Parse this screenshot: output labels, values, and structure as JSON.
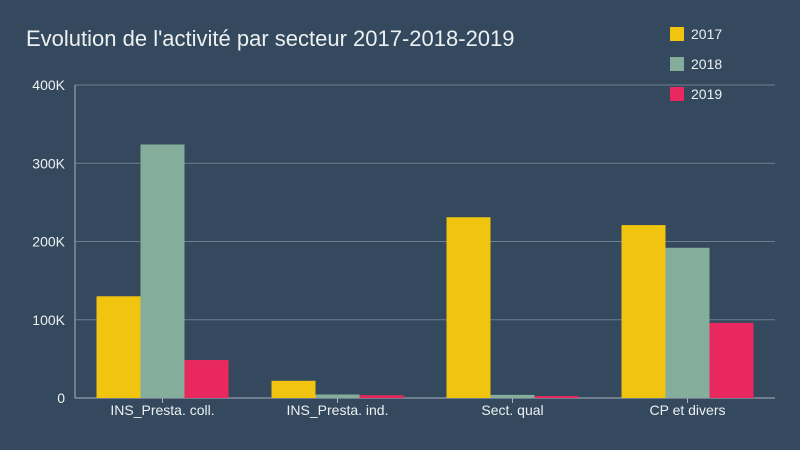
{
  "chart_data": {
    "type": "bar",
    "title": "Evolution de l'activité par secteur 2017-2018-2019",
    "categories": [
      "INS_Presta. coll.",
      "INS_Presta. ind.",
      "Sect. qual",
      "CP et divers"
    ],
    "series": [
      {
        "name": "2017",
        "color": "#f1c40f",
        "values": [
          130000,
          22000,
          231000,
          221000
        ]
      },
      {
        "name": "2018",
        "color": "#84ae9b",
        "values": [
          324000,
          4500,
          4000,
          192000
        ]
      },
      {
        "name": "2019",
        "color": "#e8285f",
        "values": [
          48500,
          3500,
          2500,
          96000
        ]
      }
    ],
    "ylim": [
      0,
      400000
    ],
    "yticks": [
      "0",
      "100K",
      "200K",
      "300K",
      "400K"
    ],
    "xlabel": "",
    "ylabel": "",
    "grid": true,
    "legend": "top-right"
  }
}
